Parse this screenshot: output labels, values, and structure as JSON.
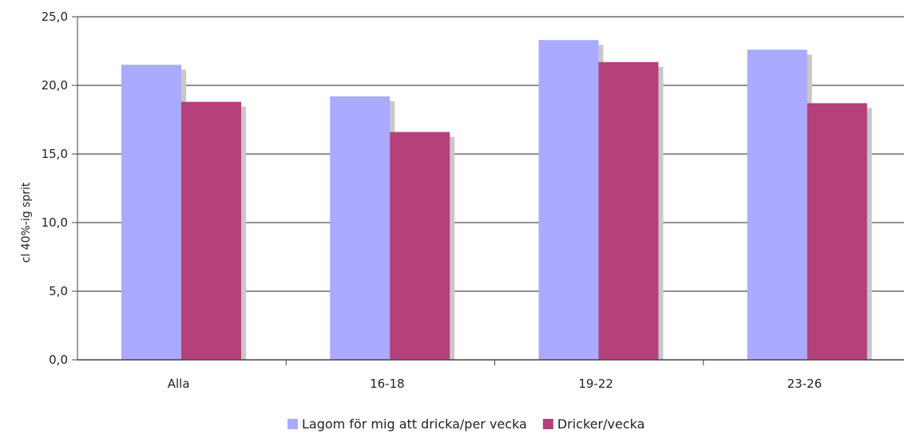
{
  "chart_data": {
    "type": "bar",
    "ylabel": "cl 40%-ig sprit",
    "ylim": [
      0,
      25
    ],
    "yticks": [
      "0,0",
      "5,0",
      "10,0",
      "15,0",
      "20,0",
      "25,0"
    ],
    "ytick_values": [
      0,
      5,
      10,
      15,
      20,
      25
    ],
    "categories": [
      "Alla",
      "16-18",
      "19-22",
      "23-26"
    ],
    "series": [
      {
        "name": "Lagom för mig att dricka/per vecka",
        "color": "#aaaaff",
        "values": [
          21.5,
          19.2,
          23.3,
          22.6
        ]
      },
      {
        "name": "Dricker/vecka",
        "color": "#b5407a",
        "values": [
          18.8,
          16.6,
          21.7,
          18.7
        ]
      }
    ],
    "grid": true,
    "legend_position": "bottom"
  }
}
